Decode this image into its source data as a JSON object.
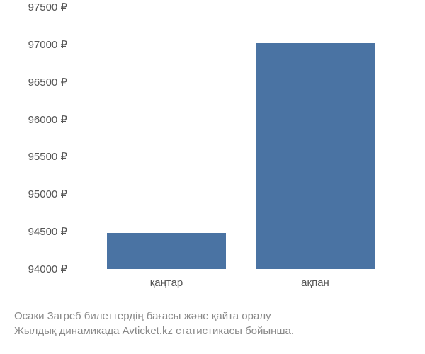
{
  "chart": {
    "type": "bar",
    "categories": [
      "қаңтар",
      "ақпан"
    ],
    "values": [
      94480,
      97020
    ],
    "bar_color": "#4a73a3",
    "ylim": [
      94000,
      97500
    ],
    "ytick_step": 500,
    "yticks": [
      94000,
      94500,
      95000,
      95500,
      96000,
      96500,
      97000,
      97500
    ],
    "ytick_labels": [
      "94000 ₽",
      "94500 ₽",
      "95000 ₽",
      "95500 ₽",
      "96000 ₽",
      "96500 ₽",
      "97000 ₽",
      "97500 ₽"
    ],
    "background_color": "#ffffff",
    "axis_text_color": "#555555",
    "axis_fontsize": 15,
    "caption_fontsize": 15,
    "caption_color": "#888888",
    "bar_width_ratio": 0.4
  },
  "caption": {
    "line1": "Осаки Загреб билеттердің бағасы және қайта оралу",
    "line2": "Жылдық динамикада Avticket.kz статистикасы бойынша."
  }
}
